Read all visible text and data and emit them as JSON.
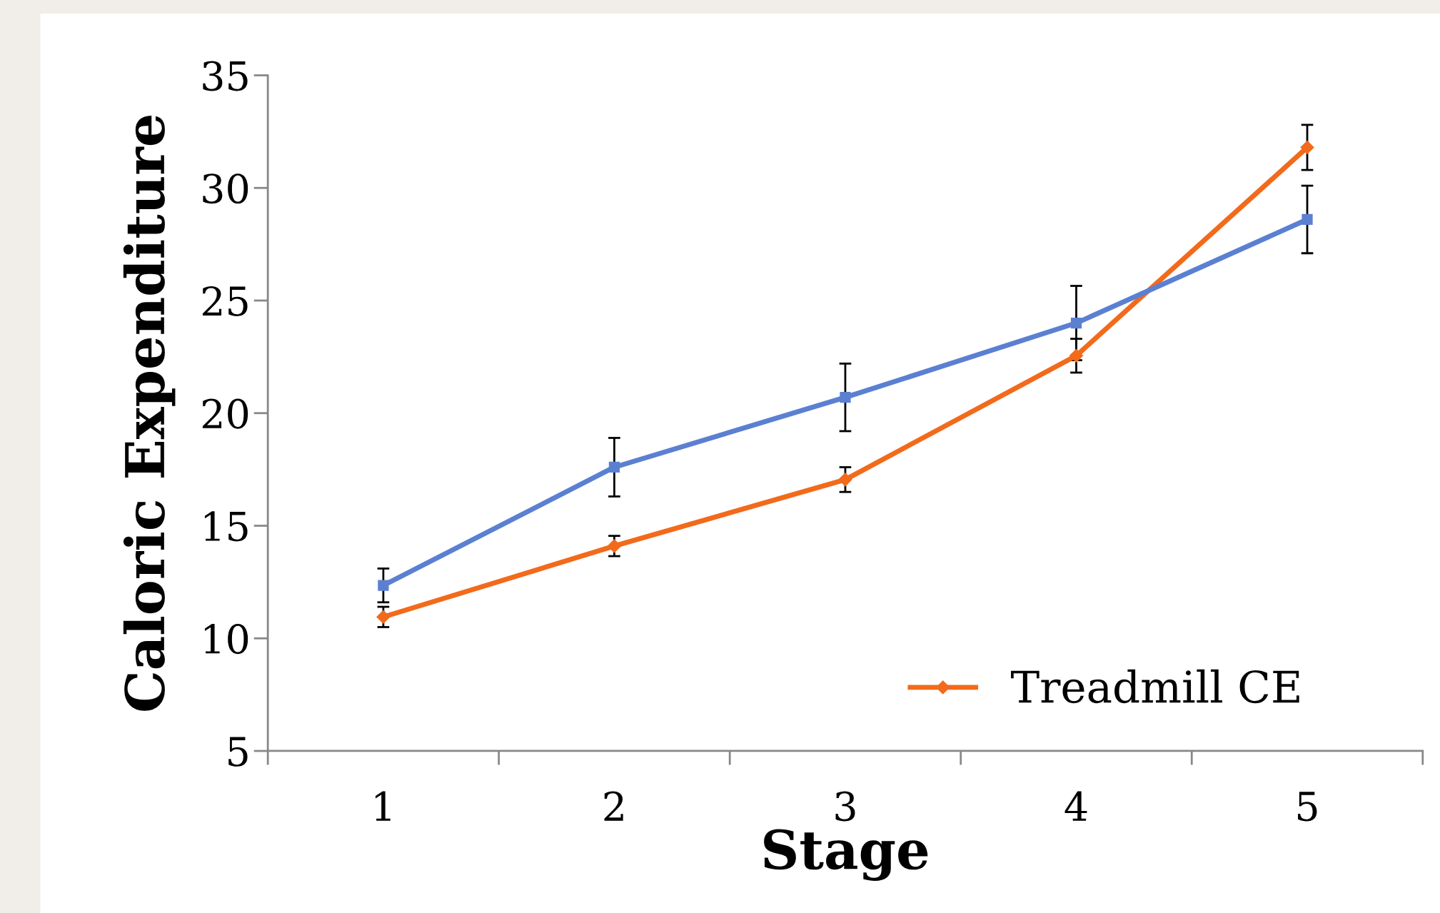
{
  "chart_data": {
    "type": "line",
    "xlabel": "Stage",
    "ylabel": "Caloric Expenditure",
    "categories": [
      "1",
      "2",
      "3",
      "4",
      "5"
    ],
    "series": [
      {
        "name": "Treadmill CE",
        "color": "#f26a1b",
        "marker": "diamond",
        "values": [
          10.95,
          14.1,
          17.05,
          22.55,
          31.8
        ],
        "errors": [
          0.45,
          0.45,
          0.55,
          0.75,
          1.0
        ]
      },
      {
        "color": "#5b80d2",
        "marker": "square",
        "values": [
          12.35,
          17.6,
          20.7,
          24.0,
          28.6
        ],
        "errors": [
          0.75,
          1.3,
          1.5,
          1.65,
          1.5
        ]
      }
    ],
    "ylim": [
      5,
      35
    ],
    "yticks": [
      5,
      10,
      15,
      20,
      25,
      30,
      35
    ],
    "grid": false,
    "legend": "bottom right",
    "line_style": "solid"
  }
}
